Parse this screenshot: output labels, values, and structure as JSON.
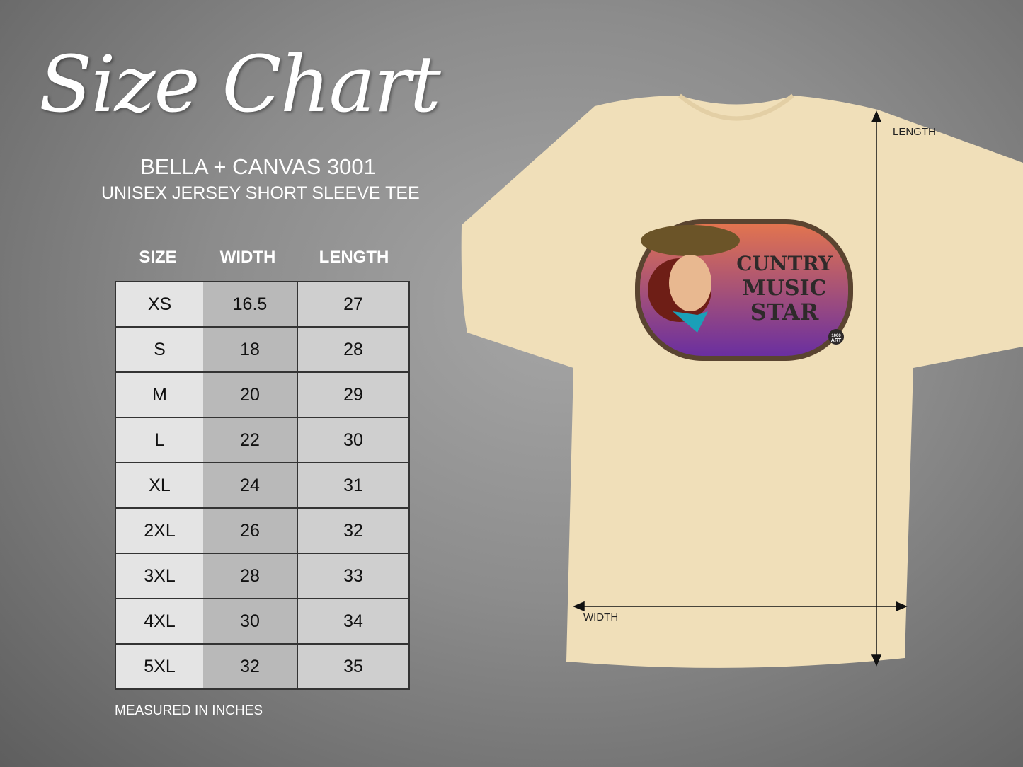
{
  "header": {
    "title": "Size Chart",
    "brand": "BELLA + CANVAS 3001",
    "subtitle": "UNISEX JERSEY SHORT SLEEVE TEE"
  },
  "table": {
    "columns": [
      "SIZE",
      "WIDTH",
      "LENGTH"
    ],
    "rows": [
      [
        "XS",
        "16.5",
        "27"
      ],
      [
        "S",
        "18",
        "28"
      ],
      [
        "M",
        "20",
        "29"
      ],
      [
        "L",
        "22",
        "30"
      ],
      [
        "XL",
        "24",
        "31"
      ],
      [
        "2XL",
        "26",
        "32"
      ],
      [
        "3XL",
        "28",
        "33"
      ],
      [
        "4XL",
        "30",
        "34"
      ],
      [
        "5XL",
        "32",
        "35"
      ]
    ]
  },
  "note": "MEASURED IN INCHES",
  "shirt": {
    "color": "#f0dfb9",
    "length_label": "LENGTH",
    "width_label": "WIDTH",
    "graphic": {
      "lines": [
        "CUNTRY",
        "MUSIC",
        "STAR"
      ],
      "badge": [
        "1000",
        "ART"
      ]
    }
  }
}
